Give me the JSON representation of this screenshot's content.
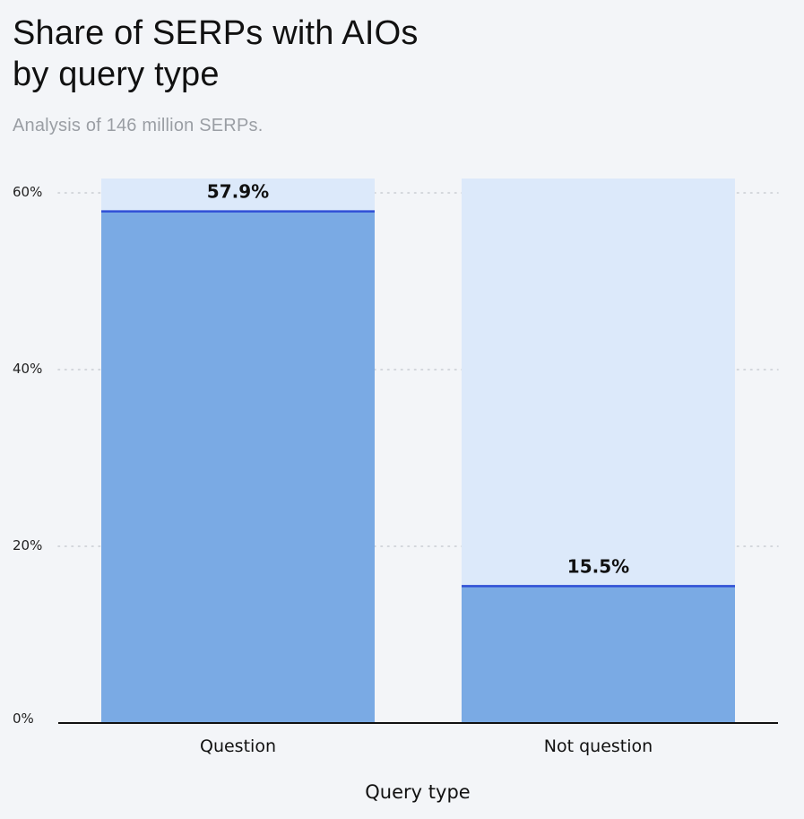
{
  "chart_data": {
    "type": "bar",
    "title_lines": [
      "Share of SERPs with AIOs",
      "by query type"
    ],
    "subtitle": "Analysis of 146 million SERPs.",
    "categories": [
      "Question",
      "Not question"
    ],
    "values": [
      57.9,
      15.5
    ],
    "value_labels": [
      "57.9%",
      "15.5%"
    ],
    "xlabel": "Query type",
    "ylabel": "",
    "ylim": [
      0,
      60
    ],
    "yticks": [
      0,
      20,
      40,
      60
    ],
    "ytick_labels": [
      "0%",
      "20%",
      "40%",
      "60%"
    ],
    "grid": true,
    "colors": {
      "bar": "#7aaae4",
      "bar_track": "#dce9fa",
      "bar_top_line": "#2f4fd6",
      "grid": "#c9cdd3",
      "axis": "#111111"
    }
  }
}
